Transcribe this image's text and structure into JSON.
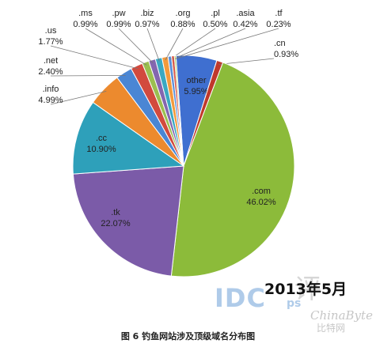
{
  "chart_data": {
    "type": "pie",
    "slices": [
      {
        "label": "other",
        "value_label": "5.95%",
        "value": 5.95,
        "color": "#3f6fd0"
      },
      {
        "label": ".cn",
        "value_label": "0.93%",
        "value": 0.93,
        "color": "#c0392b"
      },
      {
        "label": ".com",
        "value_label": "46.02%",
        "value": 46.02,
        "color": "#8cbb3a"
      },
      {
        "label": ".tk",
        "value_label": "22.07%",
        "value": 22.07,
        "color": "#7b5ba8"
      },
      {
        "label": ".cc",
        "value_label": "10.90%",
        "value": 10.9,
        "color": "#2ea0ba"
      },
      {
        "label": ".info",
        "value_label": "4.99%",
        "value": 4.99,
        "color": "#ec8a2e"
      },
      {
        "label": ".net",
        "value_label": "2.40%",
        "value": 2.4,
        "color": "#4a86d4"
      },
      {
        "label": ".us",
        "value_label": "1.77%",
        "value": 1.77,
        "color": "#d24a3e"
      },
      {
        "label": ".ms",
        "value_label": "0.99%",
        "value": 0.99,
        "color": "#9bbf50"
      },
      {
        "label": ".pw",
        "value_label": "0.99%",
        "value": 0.99,
        "color": "#8466b0"
      },
      {
        "label": ".biz",
        "value_label": "0.97%",
        "value": 0.97,
        "color": "#3aa8c2"
      },
      {
        "label": ".org",
        "value_label": "0.88%",
        "value": 0.88,
        "color": "#f39a3c"
      },
      {
        "label": ".pl",
        "value_label": "0.50%",
        "value": 0.5,
        "color": "#5b8fd8"
      },
      {
        "label": ".asia",
        "value_label": "0.42%",
        "value": 0.42,
        "color": "#d85a4a"
      },
      {
        "label": ".tf",
        "value_label": "0.23%",
        "value": 0.23,
        "color": "#a7c85e"
      }
    ]
  },
  "date_stamp": "2013年5月",
  "caption": "图 6  钓鱼网站涉及顶级域名分布图",
  "logo": {
    "idc": "IDC",
    "ps": "ps",
    "mark": "评"
  },
  "watermark": {
    "en": "ChinaByte",
    "cn": "比特网"
  }
}
